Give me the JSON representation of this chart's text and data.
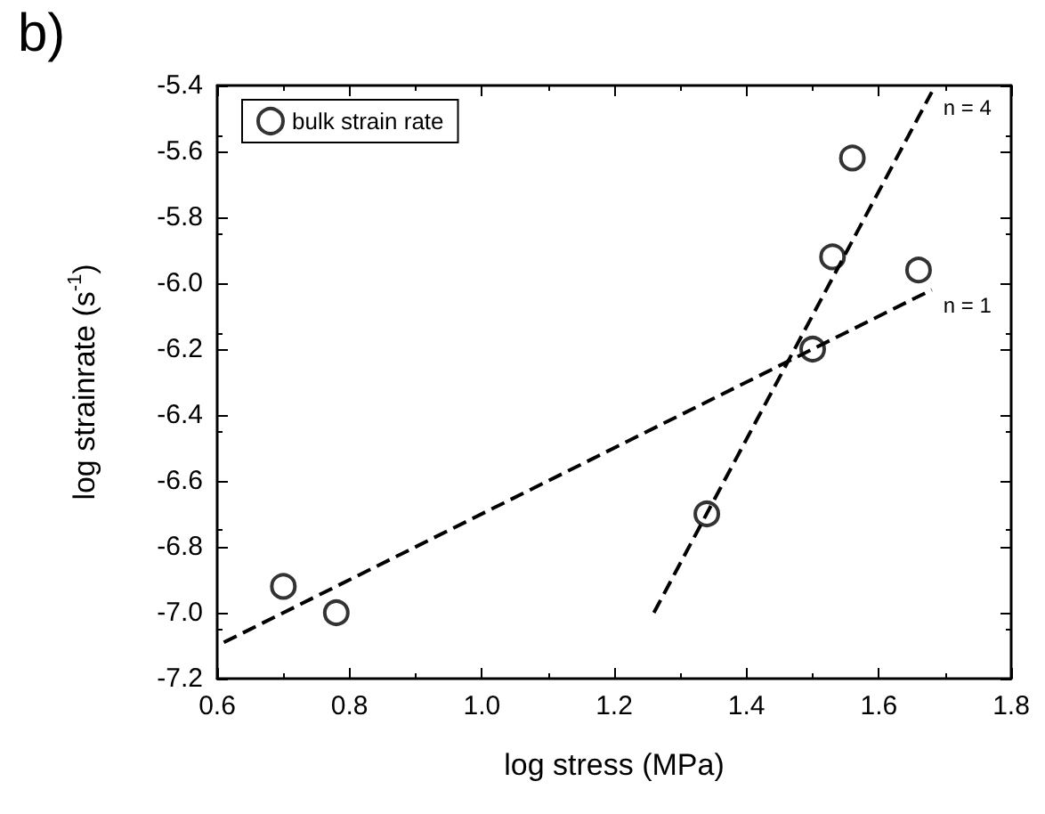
{
  "chart_data": {
    "type": "scatter",
    "xlabel": "log stress (MPa)",
    "ylabel": "log strainrate (s$^{-1}$)",
    "xlim": [
      0.6,
      1.8
    ],
    "ylim": [
      -7.2,
      -5.4
    ],
    "xticks": [
      0.6,
      0.8,
      {
        "value": 1.0,
        "label": "1.0"
      },
      1.2,
      1.4,
      1.6,
      1.8
    ],
    "yticks": [
      -7.2,
      {
        "value": -7.0,
        "label": "-7.0"
      },
      -6.8,
      -6.6,
      -6.4,
      -6.2,
      {
        "value": -6.0,
        "label": "-6.0"
      },
      -5.8,
      -5.6,
      -5.4
    ],
    "legend": "top left",
    "grid": false,
    "marker": "circle",
    "series": [
      {
        "name": "bulk strain rate",
        "color": "#000000",
        "x": [
          0.7,
          0.78,
          1.34,
          1.5,
          1.53,
          1.56,
          1.66
        ],
        "values": [
          -6.92,
          -7.0,
          -6.7,
          -6.2,
          -5.92,
          -5.62,
          -5.96
        ]
      },
      {
        "type": "line",
        "color": "#000000",
        "line_style": "dashed",
        "marker": "none",
        "x": [
          0.61,
          1.68
        ],
        "values": [
          -7.09,
          -6.02
        ]
      },
      {
        "type": "line",
        "color": "#000000",
        "line_style": "dashed",
        "marker": "none",
        "x": [
          1.26,
          1.68
        ],
        "values": [
          -7.0,
          -5.42
        ]
      }
    ],
    "annotations": [
      "b)",
      "n = 1",
      "n = 4"
    ]
  }
}
